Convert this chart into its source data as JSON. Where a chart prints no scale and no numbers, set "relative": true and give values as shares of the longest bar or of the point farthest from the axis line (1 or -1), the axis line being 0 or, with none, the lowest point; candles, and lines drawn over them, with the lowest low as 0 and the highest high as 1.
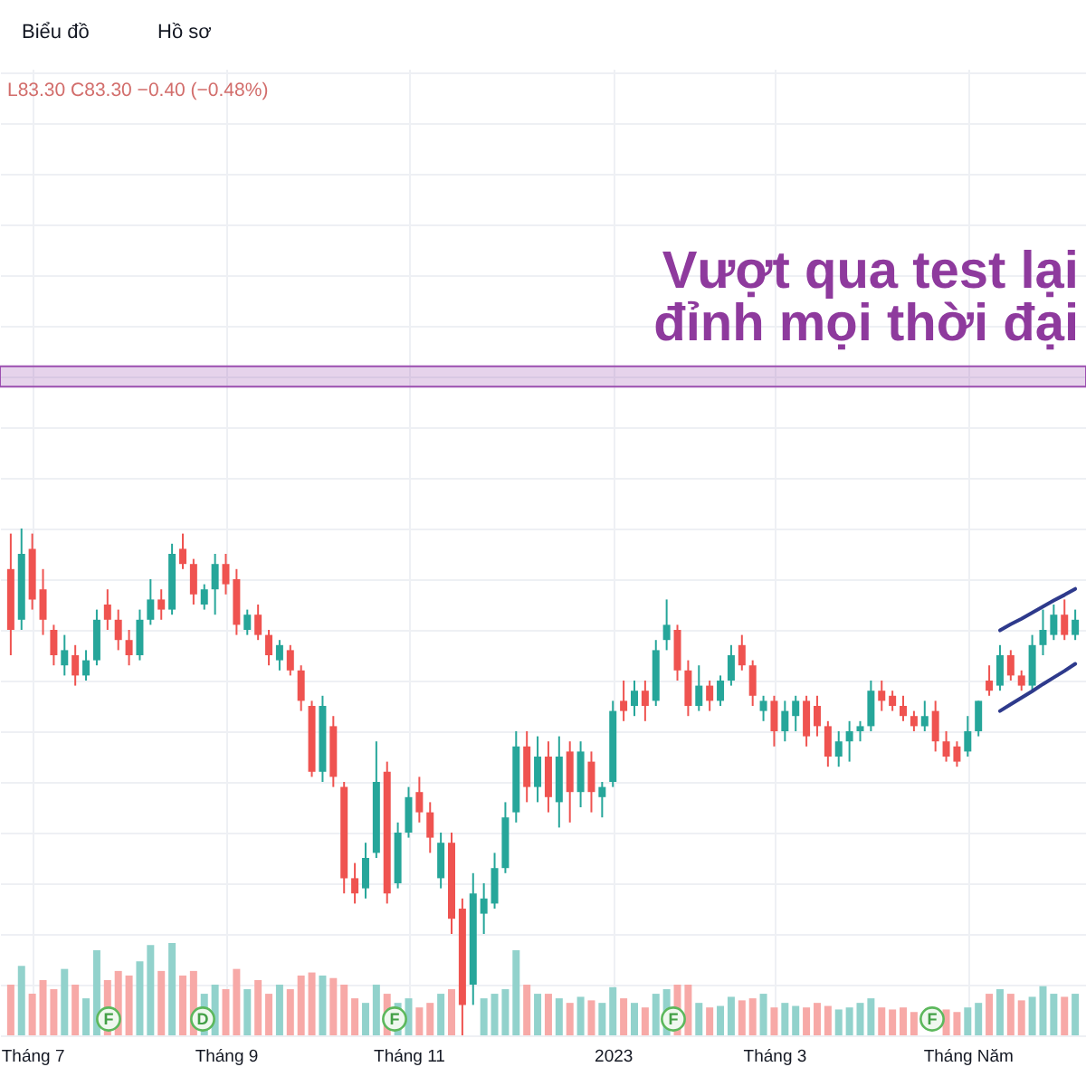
{
  "chart_data": {
    "type": "candlestick",
    "relative": true,
    "grid": true,
    "categories": [
      null,
      null,
      "Tháng 7",
      null,
      null,
      null,
      null,
      null,
      null,
      null,
      null,
      null,
      null,
      null,
      null,
      null,
      null,
      null,
      null,
      null,
      "Tháng 9",
      null,
      null,
      null,
      null,
      null,
      null,
      null,
      null,
      null,
      null,
      null,
      null,
      null,
      null,
      null,
      null,
      "Tháng 11",
      null,
      null,
      null,
      null,
      null,
      null,
      null,
      null,
      null,
      null,
      null,
      null,
      null,
      null,
      null,
      null,
      null,
      null,
      "2023",
      null,
      null,
      null,
      null,
      null,
      null,
      null,
      null,
      null,
      null,
      null,
      null,
      null,
      null,
      "Tháng 3",
      null,
      null,
      null,
      null,
      null,
      null,
      null,
      null,
      null,
      null,
      null,
      null,
      null,
      null,
      null,
      null,
      null,
      "Tháng Năm",
      null,
      null,
      null,
      null,
      null,
      null,
      null,
      null,
      null,
      null
    ],
    "ohlc": [
      [
        0.92,
        0.99,
        0.75,
        0.8
      ],
      [
        0.82,
        1.0,
        0.8,
        0.95
      ],
      [
        0.96,
        0.99,
        0.84,
        0.86
      ],
      [
        0.88,
        0.92,
        0.79,
        0.82
      ],
      [
        0.8,
        0.81,
        0.73,
        0.75
      ],
      [
        0.73,
        0.79,
        0.71,
        0.76
      ],
      [
        0.75,
        0.77,
        0.69,
        0.71
      ],
      [
        0.71,
        0.76,
        0.7,
        0.74
      ],
      [
        0.74,
        0.84,
        0.73,
        0.82
      ],
      [
        0.85,
        0.88,
        0.8,
        0.82
      ],
      [
        0.82,
        0.84,
        0.76,
        0.78
      ],
      [
        0.78,
        0.8,
        0.73,
        0.75
      ],
      [
        0.75,
        0.84,
        0.74,
        0.82
      ],
      [
        0.82,
        0.9,
        0.81,
        0.86
      ],
      [
        0.86,
        0.88,
        0.82,
        0.84
      ],
      [
        0.84,
        0.97,
        0.83,
        0.95
      ],
      [
        0.96,
        0.99,
        0.92,
        0.93
      ],
      [
        0.93,
        0.94,
        0.85,
        0.87
      ],
      [
        0.85,
        0.89,
        0.84,
        0.88
      ],
      [
        0.88,
        0.95,
        0.83,
        0.93
      ],
      [
        0.93,
        0.95,
        0.87,
        0.89
      ],
      [
        0.9,
        0.92,
        0.79,
        0.81
      ],
      [
        0.8,
        0.84,
        0.79,
        0.83
      ],
      [
        0.83,
        0.85,
        0.78,
        0.79
      ],
      [
        0.79,
        0.8,
        0.73,
        0.75
      ],
      [
        0.74,
        0.78,
        0.72,
        0.77
      ],
      [
        0.76,
        0.77,
        0.71,
        0.72
      ],
      [
        0.72,
        0.73,
        0.64,
        0.66
      ],
      [
        0.65,
        0.66,
        0.51,
        0.52
      ],
      [
        0.52,
        0.67,
        0.5,
        0.65
      ],
      [
        0.61,
        0.63,
        0.49,
        0.51
      ],
      [
        0.49,
        0.5,
        0.28,
        0.31
      ],
      [
        0.31,
        0.34,
        0.26,
        0.28
      ],
      [
        0.29,
        0.38,
        0.27,
        0.35
      ],
      [
        0.36,
        0.58,
        0.35,
        0.5
      ],
      [
        0.52,
        0.54,
        0.26,
        0.28
      ],
      [
        0.3,
        0.42,
        0.29,
        0.4
      ],
      [
        0.4,
        0.49,
        0.39,
        0.47
      ],
      [
        0.48,
        0.51,
        0.42,
        0.44
      ],
      [
        0.44,
        0.46,
        0.36,
        0.39
      ],
      [
        0.31,
        0.4,
        0.29,
        0.38
      ],
      [
        0.38,
        0.4,
        0.2,
        0.23
      ],
      [
        0.25,
        0.27,
        0.0,
        0.06
      ],
      [
        0.1,
        0.32,
        0.06,
        0.28
      ],
      [
        0.24,
        0.3,
        0.2,
        0.27
      ],
      [
        0.26,
        0.36,
        0.25,
        0.33
      ],
      [
        0.33,
        0.46,
        0.32,
        0.43
      ],
      [
        0.44,
        0.6,
        0.42,
        0.57
      ],
      [
        0.57,
        0.6,
        0.46,
        0.49
      ],
      [
        0.49,
        0.59,
        0.46,
        0.55
      ],
      [
        0.55,
        0.58,
        0.44,
        0.47
      ],
      [
        0.46,
        0.59,
        0.41,
        0.55
      ],
      [
        0.56,
        0.58,
        0.42,
        0.48
      ],
      [
        0.48,
        0.58,
        0.45,
        0.56
      ],
      [
        0.54,
        0.56,
        0.44,
        0.48
      ],
      [
        0.47,
        0.5,
        0.43,
        0.49
      ],
      [
        0.5,
        0.66,
        0.49,
        0.64
      ],
      [
        0.66,
        0.7,
        0.62,
        0.64
      ],
      [
        0.65,
        0.7,
        0.63,
        0.68
      ],
      [
        0.68,
        0.7,
        0.62,
        0.65
      ],
      [
        0.66,
        0.78,
        0.65,
        0.76
      ],
      [
        0.78,
        0.86,
        0.76,
        0.81
      ],
      [
        0.8,
        0.81,
        0.7,
        0.72
      ],
      [
        0.72,
        0.74,
        0.63,
        0.65
      ],
      [
        0.65,
        0.73,
        0.64,
        0.69
      ],
      [
        0.69,
        0.7,
        0.64,
        0.66
      ],
      [
        0.66,
        0.71,
        0.65,
        0.7
      ],
      [
        0.7,
        0.77,
        0.69,
        0.75
      ],
      [
        0.77,
        0.79,
        0.72,
        0.73
      ],
      [
        0.73,
        0.74,
        0.65,
        0.67
      ],
      [
        0.64,
        0.67,
        0.62,
        0.66
      ],
      [
        0.66,
        0.67,
        0.57,
        0.6
      ],
      [
        0.6,
        0.66,
        0.58,
        0.64
      ],
      [
        0.63,
        0.67,
        0.6,
        0.66
      ],
      [
        0.66,
        0.67,
        0.57,
        0.59
      ],
      [
        0.65,
        0.67,
        0.59,
        0.61
      ],
      [
        0.61,
        0.62,
        0.53,
        0.55
      ],
      [
        0.55,
        0.6,
        0.53,
        0.58
      ],
      [
        0.58,
        0.62,
        0.54,
        0.6
      ],
      [
        0.6,
        0.62,
        0.58,
        0.61
      ],
      [
        0.61,
        0.7,
        0.6,
        0.68
      ],
      [
        0.68,
        0.7,
        0.64,
        0.66
      ],
      [
        0.67,
        0.68,
        0.64,
        0.65
      ],
      [
        0.65,
        0.67,
        0.62,
        0.63
      ],
      [
        0.63,
        0.64,
        0.6,
        0.61
      ],
      [
        0.61,
        0.66,
        0.6,
        0.63
      ],
      [
        0.64,
        0.66,
        0.56,
        0.58
      ],
      [
        0.58,
        0.6,
        0.54,
        0.55
      ],
      [
        0.57,
        0.58,
        0.53,
        0.54
      ],
      [
        0.56,
        0.63,
        0.55,
        0.6
      ],
      [
        0.6,
        0.66,
        0.59,
        0.66
      ],
      [
        0.7,
        0.73,
        0.67,
        0.68
      ],
      [
        0.69,
        0.77,
        0.68,
        0.75
      ],
      [
        0.75,
        0.76,
        0.7,
        0.71
      ],
      [
        0.71,
        0.72,
        0.68,
        0.69
      ],
      [
        0.69,
        0.79,
        0.68,
        0.77
      ],
      [
        0.77,
        0.84,
        0.75,
        0.8
      ],
      [
        0.79,
        0.85,
        0.78,
        0.83
      ],
      [
        0.83,
        0.86,
        0.78,
        0.79
      ],
      [
        0.79,
        0.84,
        0.78,
        0.82
      ]
    ],
    "colors": [
      "#ef5350",
      "#26a69a",
      "#ef5350",
      "#ef5350",
      "#ef5350",
      "#26a69a",
      "#ef5350",
      "#26a69a",
      "#26a69a",
      "#ef5350",
      "#ef5350",
      "#ef5350",
      "#26a69a",
      "#26a69a",
      "#ef5350",
      "#26a69a",
      "#ef5350",
      "#ef5350",
      "#26a69a",
      "#26a69a",
      "#ef5350",
      "#ef5350",
      "#26a69a",
      "#ef5350",
      "#ef5350",
      "#26a69a",
      "#ef5350",
      "#ef5350",
      "#ef5350",
      "#26a69a",
      "#ef5350",
      "#ef5350",
      "#ef5350",
      "#26a69a",
      "#26a69a",
      "#ef5350",
      "#26a69a",
      "#26a69a",
      "#ef5350",
      "#ef5350",
      "#26a69a",
      "#ef5350",
      "#ef5350",
      "#26a69a",
      "#26a69a",
      "#26a69a",
      "#26a69a",
      "#26a69a",
      "#ef5350",
      "#26a69a",
      "#ef5350",
      "#26a69a",
      "#ef5350",
      "#26a69a",
      "#ef5350",
      "#26a69a",
      "#26a69a",
      "#ef5350",
      "#26a69a",
      "#ef5350",
      "#26a69a",
      "#26a69a",
      "#ef5350",
      "#ef5350",
      "#26a69a",
      "#ef5350",
      "#26a69a",
      "#26a69a",
      "#ef5350",
      "#ef5350",
      "#26a69a",
      "#ef5350",
      "#26a69a",
      "#26a69a",
      "#ef5350",
      "#ef5350",
      "#ef5350",
      "#26a69a",
      "#26a69a",
      "#26a69a",
      "#26a69a",
      "#ef5350",
      "#ef5350",
      "#ef5350",
      "#ef5350",
      "#26a69a",
      "#ef5350",
      "#ef5350",
      "#ef5350",
      "#26a69a",
      "#26a69a",
      "#ef5350",
      "#26a69a",
      "#ef5350",
      "#ef5350",
      "#26a69a",
      "#26a69a",
      "#26a69a",
      "#ef5350",
      "#26a69a"
    ],
    "series": [
      {
        "type": "bar",
        "values": [
          0.1,
          0.137,
          0.082,
          0.109,
          0.091,
          0.131,
          0.1,
          0.073,
          0.168,
          0.109,
          0.127,
          0.118,
          0.146,
          0.178,
          0.127,
          0.182,
          0.118,
          0.127,
          0.082,
          0.1,
          0.091,
          0.131,
          0.091,
          0.109,
          0.082,
          0.1,
          0.091,
          0.118,
          0.124,
          0.118,
          0.113,
          0.1,
          0.073,
          0.064,
          0.1,
          0.082,
          0.064,
          0.073,
          0.055,
          0.064,
          0.082,
          0.091,
          null,
          null,
          0.073,
          0.082,
          0.091,
          0.168,
          0.1,
          0.082,
          0.082,
          0.073,
          0.064,
          0.076,
          0.069,
          0.064,
          0.095,
          0.073,
          0.064,
          0.055,
          0.082,
          0.091,
          0.1,
          0.1,
          0.064,
          0.055,
          0.058,
          0.076,
          0.069,
          0.073,
          0.082,
          0.055,
          0.064,
          0.058,
          0.055,
          0.064,
          0.058,
          0.051,
          0.055,
          0.064,
          0.073,
          0.055,
          0.051,
          0.055,
          0.046,
          null,
          null,
          0.051,
          0.046,
          0.055,
          0.064,
          0.082,
          0.091,
          0.082,
          0.069,
          0.076,
          0.097,
          0.082,
          0.076,
          0.082
        ],
        "colors": [
          "#f7a9a7",
          "#92d2cc",
          "#f7a9a7",
          "#f7a9a7",
          "#f7a9a7",
          "#92d2cc",
          "#f7a9a7",
          "#92d2cc",
          "#92d2cc",
          "#f7a9a7",
          "#f7a9a7",
          "#f7a9a7",
          "#92d2cc",
          "#92d2cc",
          "#f7a9a7",
          "#92d2cc",
          "#f7a9a7",
          "#f7a9a7",
          "#92d2cc",
          "#92d2cc",
          "#f7a9a7",
          "#f7a9a7",
          "#92d2cc",
          "#f7a9a7",
          "#f7a9a7",
          "#92d2cc",
          "#f7a9a7",
          "#f7a9a7",
          "#f7a9a7",
          "#92d2cc",
          "#f7a9a7",
          "#f7a9a7",
          "#f7a9a7",
          "#92d2cc",
          "#92d2cc",
          "#f7a9a7",
          "#92d2cc",
          "#92d2cc",
          "#f7a9a7",
          "#f7a9a7",
          "#92d2cc",
          "#f7a9a7",
          "#f7a9a7",
          "#92d2cc",
          "#92d2cc",
          "#92d2cc",
          "#92d2cc",
          "#92d2cc",
          "#f7a9a7",
          "#92d2cc",
          "#f7a9a7",
          "#92d2cc",
          "#f7a9a7",
          "#92d2cc",
          "#f7a9a7",
          "#92d2cc",
          "#92d2cc",
          "#f7a9a7",
          "#92d2cc",
          "#f7a9a7",
          "#92d2cc",
          "#92d2cc",
          "#f7a9a7",
          "#f7a9a7",
          "#92d2cc",
          "#f7a9a7",
          "#92d2cc",
          "#92d2cc",
          "#f7a9a7",
          "#f7a9a7",
          "#92d2cc",
          "#f7a9a7",
          "#92d2cc",
          "#92d2cc",
          "#f7a9a7",
          "#f7a9a7",
          "#f7a9a7",
          "#92d2cc",
          "#92d2cc",
          "#92d2cc",
          "#92d2cc",
          "#f7a9a7",
          "#f7a9a7",
          "#f7a9a7",
          "#f7a9a7",
          "#92d2cc",
          "#f7a9a7",
          "#f7a9a7",
          "#f7a9a7",
          "#92d2cc",
          "#92d2cc",
          "#f7a9a7",
          "#92d2cc",
          "#f7a9a7",
          "#f7a9a7",
          "#92d2cc",
          "#92d2cc",
          "#92d2cc",
          "#f7a9a7",
          "#92d2cc"
        ]
      },
      {
        "type": "line",
        "color": "#2e3a8c",
        "values": [
          null,
          null,
          null,
          null,
          null,
          null,
          null,
          null,
          null,
          null,
          null,
          null,
          null,
          null,
          null,
          null,
          null,
          null,
          null,
          null,
          null,
          null,
          null,
          null,
          null,
          null,
          null,
          null,
          null,
          null,
          null,
          null,
          null,
          null,
          null,
          null,
          null,
          null,
          null,
          null,
          null,
          null,
          null,
          null,
          null,
          null,
          null,
          null,
          null,
          null,
          null,
          null,
          null,
          null,
          null,
          null,
          null,
          null,
          null,
          null,
          null,
          null,
          null,
          null,
          null,
          null,
          null,
          null,
          null,
          null,
          null,
          null,
          null,
          null,
          null,
          null,
          null,
          null,
          null,
          null,
          null,
          null,
          null,
          null,
          null,
          null,
          null,
          null,
          null,
          null,
          null,
          null,
          0.799,
          0.811,
          0.822,
          0.834,
          0.846,
          0.858,
          0.869,
          0.881
        ]
      },
      {
        "type": "line",
        "color": "#2e3a8c",
        "values": [
          null,
          null,
          null,
          null,
          null,
          null,
          null,
          null,
          null,
          null,
          null,
          null,
          null,
          null,
          null,
          null,
          null,
          null,
          null,
          null,
          null,
          null,
          null,
          null,
          null,
          null,
          null,
          null,
          null,
          null,
          null,
          null,
          null,
          null,
          null,
          null,
          null,
          null,
          null,
          null,
          null,
          null,
          null,
          null,
          null,
          null,
          null,
          null,
          null,
          null,
          null,
          null,
          null,
          null,
          null,
          null,
          null,
          null,
          null,
          null,
          null,
          null,
          null,
          null,
          null,
          null,
          null,
          null,
          null,
          null,
          null,
          null,
          null,
          null,
          null,
          null,
          null,
          null,
          null,
          null,
          null,
          null,
          null,
          null,
          null,
          null,
          null,
          null,
          null,
          null,
          null,
          null,
          0.64,
          0.653,
          0.666,
          0.679,
          0.693,
          0.706,
          0.719,
          0.733
        ]
      }
    ],
    "bands": [
      {
        "axis": "y",
        "from": 1.28,
        "to": 1.32,
        "color": "#9c4fb0"
      }
    ],
    "annotations": [
      "Biểu đồ",
      "Hồ sơ",
      "L83.30 C83.30 −0.40 (−0.48%)",
      "Vượt qua test lại",
      "đỉnh mọi thời đại",
      "F",
      "D",
      "F",
      "F",
      "F"
    ]
  }
}
